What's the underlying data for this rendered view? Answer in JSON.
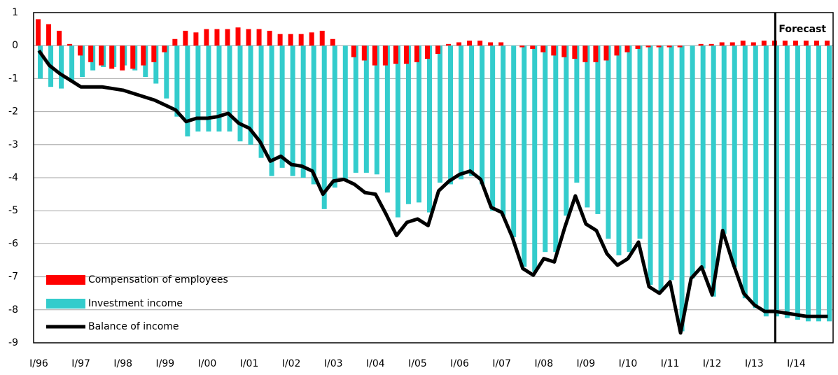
{
  "chart_data": {
    "type": "bar_line",
    "categories": [
      "I/96",
      null,
      null,
      null,
      "I/97",
      null,
      null,
      null,
      "I/98",
      null,
      null,
      null,
      "I/99",
      null,
      null,
      null,
      "I/00",
      null,
      null,
      null,
      "I/01",
      null,
      null,
      null,
      "I/02",
      null,
      null,
      null,
      "I/03",
      null,
      null,
      null,
      "I/04",
      null,
      null,
      null,
      "I/05",
      null,
      null,
      null,
      "I/06",
      null,
      null,
      null,
      "I/07",
      null,
      null,
      null,
      "I/08",
      null,
      null,
      null,
      "I/09",
      null,
      null,
      null,
      "I/10",
      null,
      null,
      null,
      "I/11",
      null,
      null,
      null,
      "I/12",
      null,
      null,
      null,
      "I/13",
      null,
      null,
      null,
      "I/14",
      null,
      null,
      null
    ],
    "series": [
      {
        "name": "Compensation of employees",
        "color": "#ff0000",
        "kind": "bar",
        "values": [
          0.8,
          0.65,
          0.45,
          0.05,
          -0.3,
          -0.5,
          -0.6,
          -0.7,
          -0.75,
          -0.7,
          -0.6,
          -0.5,
          -0.2,
          0.2,
          0.45,
          0.4,
          0.5,
          0.5,
          0.5,
          0.55,
          0.5,
          0.5,
          0.45,
          0.35,
          0.35,
          0.35,
          0.4,
          0.45,
          0.2,
          0.0,
          -0.35,
          -0.45,
          -0.6,
          -0.6,
          -0.55,
          -0.55,
          -0.5,
          -0.4,
          -0.25,
          0.05,
          0.1,
          0.15,
          0.15,
          0.1,
          0.1,
          0.0,
          -0.05,
          -0.1,
          -0.2,
          -0.3,
          -0.35,
          -0.4,
          -0.5,
          -0.5,
          -0.45,
          -0.3,
          -0.2,
          -0.1,
          -0.05,
          -0.05,
          -0.05,
          -0.05,
          0.0,
          0.05,
          0.05,
          0.1,
          0.1,
          0.15,
          0.1,
          0.15,
          0.15,
          0.15,
          0.15,
          0.15,
          0.15,
          0.15
        ]
      },
      {
        "name": "Investment income",
        "color": "#33cccc",
        "kind": "bar",
        "values": [
          -1.0,
          -1.25,
          -1.3,
          -1.1,
          -0.95,
          -0.75,
          -0.65,
          -0.65,
          -0.6,
          -0.75,
          -0.95,
          -1.15,
          -1.6,
          -2.15,
          -2.75,
          -2.6,
          -2.6,
          -2.6,
          -2.6,
          -2.9,
          -3.0,
          -3.4,
          -3.95,
          -3.7,
          -3.95,
          -4.0,
          -4.2,
          -4.95,
          -4.3,
          -4.05,
          -3.85,
          -3.85,
          -3.9,
          -4.45,
          -5.2,
          -4.8,
          -4.75,
          -5.05,
          -4.15,
          -4.2,
          -4.05,
          -3.95,
          -4.2,
          -5.0,
          -5.15,
          -5.8,
          -6.7,
          -6.85,
          -6.25,
          -6.25,
          -5.15,
          -4.15,
          -4.9,
          -5.1,
          -5.85,
          -6.35,
          -6.25,
          -5.85,
          -7.25,
          -7.45,
          -7.1,
          -8.65,
          -7.05,
          -6.75,
          -7.6,
          -5.7,
          -6.7,
          -7.65,
          -7.95,
          -8.2,
          -8.2,
          -8.25,
          -8.3,
          -8.35,
          -8.35,
          -8.35
        ]
      },
      {
        "name": "Balance of income",
        "color": "#000000",
        "kind": "line",
        "values": [
          -0.15,
          -0.6,
          -0.85,
          -1.05,
          -1.25,
          -1.25,
          -1.25,
          -1.3,
          -1.35,
          -1.45,
          -1.55,
          -1.65,
          -1.8,
          -1.95,
          -2.3,
          -2.2,
          -2.2,
          -2.15,
          -2.05,
          -2.35,
          -2.5,
          -2.9,
          -3.5,
          -3.35,
          -3.6,
          -3.65,
          -3.8,
          -4.5,
          -4.1,
          -4.05,
          -4.2,
          -4.45,
          -4.5,
          -5.1,
          -5.75,
          -5.35,
          -5.25,
          -5.45,
          -4.4,
          -4.1,
          -3.9,
          -3.8,
          -4.05,
          -4.9,
          -5.05,
          -5.8,
          -6.75,
          -6.95,
          -6.45,
          -6.55,
          -5.5,
          -4.55,
          -5.4,
          -5.6,
          -6.3,
          -6.65,
          -6.45,
          -5.95,
          -7.3,
          -7.5,
          -7.15,
          -8.7,
          -7.05,
          -6.7,
          -7.55,
          -5.6,
          -6.6,
          -7.5,
          -7.85,
          -8.05,
          -8.05,
          -8.1,
          -8.15,
          -8.2,
          -8.2,
          -8.2
        ]
      }
    ],
    "annotation": "Forecast",
    "ylim": [
      -9,
      1
    ],
    "yticks": [
      1,
      0,
      -1,
      -2,
      -3,
      -4,
      -5,
      -6,
      -7,
      -8,
      -9
    ],
    "grid": true,
    "legend": "lower left"
  }
}
